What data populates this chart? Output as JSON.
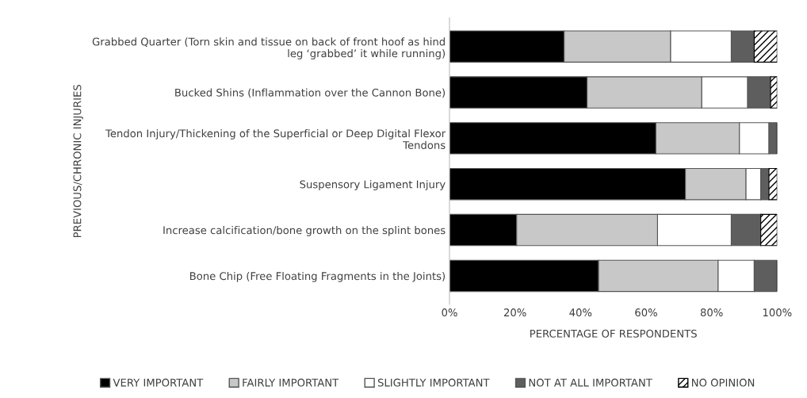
{
  "chart_data": {
    "type": "bar",
    "orientation": "horizontal",
    "stacked": true,
    "categories": [
      "Grabbed Quarter (Torn skin and tissue on back of front hoof as hind\nleg ‘grabbed’ it while running)",
      "Bucked Shins (Inflammation over the Cannon Bone)",
      "Tendon Injury/Thickening of the Superficial or Deep Digital Flexor\nTendons",
      "Suspensory Ligament Injury",
      "Increase calcification/bone growth on the splint bones",
      "Bone Chip (Free Floating Fragments in the Joints)"
    ],
    "series": [
      {
        "name": "VERY IMPORTANT",
        "color": "#000000",
        "values": [
          35,
          42,
          63,
          72,
          20.5,
          45.5
        ]
      },
      {
        "name": "FAIRLY IMPORTANT",
        "color": "#c8c8c8",
        "values": [
          32.5,
          35,
          25.5,
          18.5,
          43,
          36.5
        ]
      },
      {
        "name": "SLIGHTLY IMPORTANT",
        "color": "#ffffff",
        "values": [
          18.5,
          14,
          9,
          4.5,
          22.5,
          11
        ]
      },
      {
        "name": "NOT AT ALL IMPORTANT",
        "color": "#5e5e5e",
        "values": [
          7,
          7,
          2.5,
          2.5,
          9,
          7
        ]
      },
      {
        "name": "NO OPINION",
        "color": "#000000",
        "values": [
          7,
          2,
          0,
          2.5,
          5,
          0
        ]
      }
    ],
    "xlim": [
      0,
      100
    ],
    "xticks": [
      {
        "value": 0,
        "label": "0%"
      },
      {
        "value": 20,
        "label": "20%"
      },
      {
        "value": 40,
        "label": "40%"
      },
      {
        "value": 60,
        "label": "60%"
      },
      {
        "value": 80,
        "label": "80%"
      },
      {
        "value": 100,
        "label": "100%"
      }
    ],
    "xlabel": "PERCENTAGE OF RESPONDENTS",
    "ylabel": "PREVIOUS/CHRONIC INJURIES",
    "grid": false,
    "legend": "bottom"
  }
}
